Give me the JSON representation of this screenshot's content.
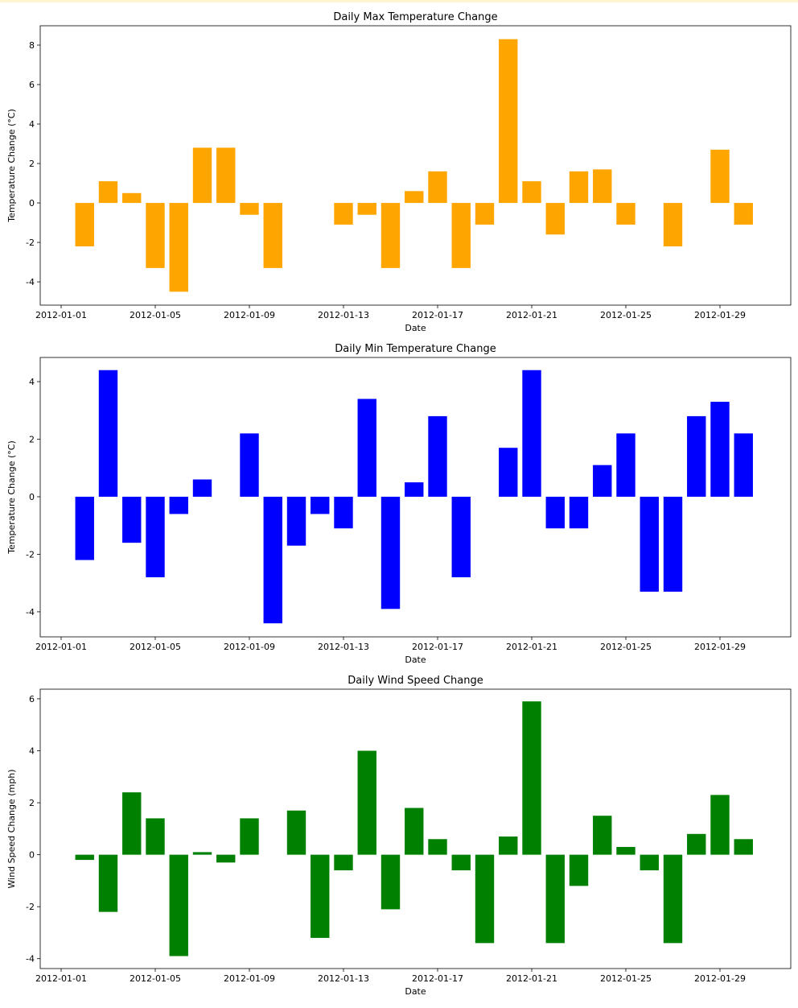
{
  "chart_data": [
    {
      "type": "bar",
      "title": "Daily Max Temperature Change",
      "xlabel": "Date",
      "ylabel": "Temperature Change (°C)",
      "color": "#ffa500",
      "x": [
        "2012-01-02",
        "2012-01-03",
        "2012-01-04",
        "2012-01-05",
        "2012-01-06",
        "2012-01-07",
        "2012-01-08",
        "2012-01-09",
        "2012-01-10",
        "2012-01-11",
        "2012-01-12",
        "2012-01-13",
        "2012-01-14",
        "2012-01-15",
        "2012-01-16",
        "2012-01-17",
        "2012-01-18",
        "2012-01-19",
        "2012-01-20",
        "2012-01-21",
        "2012-01-22",
        "2012-01-23",
        "2012-01-24",
        "2012-01-25",
        "2012-01-26",
        "2012-01-27",
        "2012-01-28",
        "2012-01-29",
        "2012-01-30"
      ],
      "values": [
        -2.2,
        1.1,
        0.5,
        -3.3,
        -4.5,
        2.8,
        2.8,
        -0.6,
        -3.3,
        0,
        0,
        -1.1,
        -0.6,
        -3.3,
        0.6,
        1.6,
        -3.3,
        -1.1,
        8.3,
        1.1,
        -1.6,
        1.6,
        1.7,
        -1.1,
        0,
        -2.2,
        0,
        2.7,
        -1.1
      ],
      "ylim": [
        -5.18,
        8.98
      ],
      "yticks": [
        -4,
        -2,
        0,
        2,
        4,
        6,
        8
      ],
      "xticks": [
        "2012-01-01",
        "2012-01-05",
        "2012-01-09",
        "2012-01-13",
        "2012-01-17",
        "2012-01-21",
        "2012-01-25",
        "2012-01-29"
      ],
      "grid": false
    },
    {
      "type": "bar",
      "title": "Daily Min Temperature Change",
      "xlabel": "Date",
      "ylabel": "Temperature Change (°C)",
      "color": "#0000ff",
      "x": [
        "2012-01-02",
        "2012-01-03",
        "2012-01-04",
        "2012-01-05",
        "2012-01-06",
        "2012-01-07",
        "2012-01-08",
        "2012-01-09",
        "2012-01-10",
        "2012-01-11",
        "2012-01-12",
        "2012-01-13",
        "2012-01-14",
        "2012-01-15",
        "2012-01-16",
        "2012-01-17",
        "2012-01-18",
        "2012-01-19",
        "2012-01-20",
        "2012-01-21",
        "2012-01-22",
        "2012-01-23",
        "2012-01-24",
        "2012-01-25",
        "2012-01-26",
        "2012-01-27",
        "2012-01-28",
        "2012-01-29",
        "2012-01-30"
      ],
      "values": [
        -2.2,
        4.4,
        -1.6,
        -2.8,
        -0.6,
        0.6,
        0,
        2.2,
        -4.4,
        -1.7,
        -0.6,
        -1.1,
        3.4,
        -3.9,
        0.5,
        2.8,
        -2.8,
        0,
        1.7,
        4.4,
        -1.1,
        -1.1,
        1.1,
        2.2,
        -3.3,
        -3.3,
        2.8,
        3.3,
        2.2
      ],
      "ylim": [
        -4.87,
        4.84
      ],
      "yticks": [
        -4,
        -2,
        0,
        2,
        4
      ],
      "xticks": [
        "2012-01-01",
        "2012-01-05",
        "2012-01-09",
        "2012-01-13",
        "2012-01-17",
        "2012-01-21",
        "2012-01-25",
        "2012-01-29"
      ],
      "grid": false
    },
    {
      "type": "bar",
      "title": "Daily Wind Speed Change",
      "xlabel": "Date",
      "ylabel": "Wind Speed Change (mph)",
      "color": "#008000",
      "x": [
        "2012-01-02",
        "2012-01-03",
        "2012-01-04",
        "2012-01-05",
        "2012-01-06",
        "2012-01-07",
        "2012-01-08",
        "2012-01-09",
        "2012-01-10",
        "2012-01-11",
        "2012-01-12",
        "2012-01-13",
        "2012-01-14",
        "2012-01-15",
        "2012-01-16",
        "2012-01-17",
        "2012-01-18",
        "2012-01-19",
        "2012-01-20",
        "2012-01-21",
        "2012-01-22",
        "2012-01-23",
        "2012-01-24",
        "2012-01-25",
        "2012-01-26",
        "2012-01-27",
        "2012-01-28",
        "2012-01-29",
        "2012-01-30"
      ],
      "values": [
        -0.2,
        -2.2,
        2.4,
        1.4,
        -3.9,
        0.1,
        -0.3,
        1.4,
        0,
        1.7,
        -3.2,
        -0.6,
        4.0,
        -2.1,
        1.8,
        0.6,
        -0.6,
        -3.4,
        0.7,
        5.9,
        -3.4,
        -1.2,
        1.5,
        0.3,
        -0.6,
        -3.4,
        0.8,
        2.3,
        0.6
      ],
      "ylim": [
        -4.38,
        6.37
      ],
      "yticks": [
        -4,
        -2,
        0,
        2,
        4,
        6
      ],
      "xticks": [
        "2012-01-01",
        "2012-01-05",
        "2012-01-09",
        "2012-01-13",
        "2012-01-17",
        "2012-01-21",
        "2012-01-25",
        "2012-01-29"
      ],
      "grid": false
    }
  ]
}
